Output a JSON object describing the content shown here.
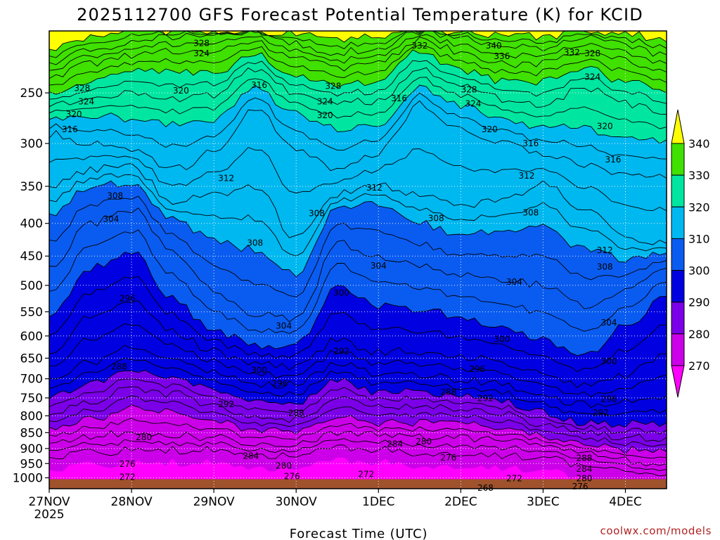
{
  "chart_data": {
    "type": "heatmap",
    "title": "2025112700 GFS Forecast Potential Temperature (K) for KCID",
    "xlabel": "Forecast Time (UTC)",
    "ylabel": "",
    "credit": "coolwx.com/models",
    "x_ticks": [
      "27NOV",
      "28NOV",
      "29NOV",
      "30NOV",
      "1DEC",
      "2DEC",
      "3DEC",
      "4DEC"
    ],
    "x_year": "2025",
    "x_range_days": [
      0,
      7.5
    ],
    "y_scale": "log",
    "y_range": [
      1040,
      200
    ],
    "y_ticks": [
      250,
      300,
      350,
      400,
      450,
      500,
      550,
      600,
      650,
      700,
      750,
      800,
      850,
      900,
      950,
      1000
    ],
    "contour_interval": 2,
    "colorbar": {
      "levels": [
        270,
        280,
        290,
        300,
        310,
        320,
        330,
        340
      ],
      "colors": [
        "#ff00ff",
        "#cc00e8",
        "#7b00e8",
        "#0000e0",
        "#0a5cf0",
        "#00b8f0",
        "#00e6a0",
        "#40e000",
        "#ffff00"
      ]
    },
    "ground_color": "#a0522d",
    "isentropes": [
      {
        "theta": 272,
        "x": [
          0,
          0.5,
          1,
          1.5,
          2,
          2.5,
          3,
          3.5,
          4,
          4.5,
          5,
          5.5,
          6,
          6.5,
          7,
          7.5
        ],
        "p": [
          930,
          915,
          905,
          905,
          905,
          920,
          925,
          900,
          905,
          915,
          920,
          925,
          930,
          955,
          980,
          990
        ]
      },
      {
        "theta": 276,
        "x": [
          0,
          0.5,
          1,
          1.5,
          2,
          2.5,
          3,
          3.5,
          4,
          4.5,
          5,
          5.5,
          6,
          6.5,
          7,
          7.5
        ],
        "p": [
          880,
          860,
          850,
          855,
          865,
          885,
          885,
          850,
          860,
          865,
          865,
          875,
          890,
          915,
          940,
          950
        ]
      },
      {
        "theta": 280,
        "x": [
          0,
          0.5,
          1,
          1.5,
          2,
          2.5,
          3,
          3.5,
          4,
          4.5,
          5,
          5.5,
          6,
          6.5,
          7,
          7.5
        ],
        "p": [
          835,
          810,
          775,
          785,
          810,
          845,
          850,
          800,
          820,
          820,
          820,
          835,
          860,
          885,
          905,
          910
        ]
      },
      {
        "theta": 284,
        "x": [
          0,
          0.5,
          1,
          1.5,
          2,
          2.5,
          3,
          3.5,
          4,
          4.5,
          5,
          5.5,
          6,
          6.5,
          7,
          7.5
        ],
        "p": [
          790,
          760,
          725,
          740,
          770,
          805,
          810,
          750,
          775,
          775,
          780,
          795,
          825,
          850,
          865,
          865
        ]
      },
      {
        "theta": 288,
        "x": [
          0,
          0.5,
          1,
          1.5,
          2,
          2.5,
          3,
          3.5,
          4,
          4.5,
          5,
          5.5,
          6,
          6.5,
          7,
          7.5
        ],
        "p": [
          745,
          710,
          675,
          695,
          725,
          760,
          765,
          705,
          735,
          735,
          745,
          760,
          790,
          820,
          825,
          820
        ]
      },
      {
        "theta": 292,
        "x": [
          0,
          0.5,
          1,
          1.5,
          2,
          2.5,
          3,
          3.5,
          4,
          4.5,
          5,
          5.5,
          6,
          6.5,
          7,
          7.5
        ],
        "p": [
          700,
          660,
          625,
          650,
          685,
          715,
          715,
          660,
          690,
          690,
          700,
          715,
          745,
          770,
          760,
          745
        ]
      },
      {
        "theta": 296,
        "x": [
          0,
          0.5,
          1,
          1.5,
          2,
          2.5,
          3,
          3.5,
          4,
          4.5,
          5,
          5.5,
          6,
          6.5,
          7,
          7.5
        ],
        "p": [
          640,
          560,
          530,
          590,
          635,
          665,
          670,
          610,
          635,
          635,
          645,
          660,
          690,
          715,
          690,
          640
        ]
      },
      {
        "theta": 300,
        "x": [
          0,
          0.5,
          1,
          1.5,
          2,
          2.5,
          3,
          3.5,
          4,
          4.5,
          5,
          5.5,
          6,
          6.5,
          7,
          7.5
        ],
        "p": [
          560,
          470,
          440,
          525,
          590,
          620,
          620,
          500,
          540,
          545,
          560,
          580,
          610,
          645,
          580,
          520
        ]
      },
      {
        "theta": 304,
        "x": [
          0,
          0.5,
          1,
          1.5,
          2,
          2.5,
          3,
          3.5,
          4,
          4.5,
          5,
          5.5,
          6,
          6.5,
          7,
          7.5
        ],
        "p": [
          470,
          400,
          380,
          440,
          510,
          555,
          565,
          430,
          450,
          465,
          480,
          490,
          500,
          540,
          510,
          470
        ]
      },
      {
        "theta": 308,
        "x": [
          0,
          0.5,
          1,
          1.5,
          2,
          2.5,
          3,
          3.5,
          4,
          4.5,
          5,
          5.5,
          6,
          6.5,
          7,
          7.5
        ],
        "p": [
          390,
          350,
          345,
          395,
          425,
          440,
          480,
          375,
          375,
          400,
          420,
          410,
          405,
          440,
          455,
          445
        ]
      },
      {
        "theta": 312,
        "x": [
          0,
          0.5,
          1,
          1.5,
          2,
          2.5,
          3,
          3.5,
          4,
          4.5,
          5,
          5.5,
          6,
          6.5,
          7,
          7.5
        ],
        "p": [
          350,
          330,
          325,
          370,
          360,
          350,
          420,
          360,
          350,
          360,
          375,
          370,
          345,
          380,
          420,
          430
        ]
      },
      {
        "theta": 316,
        "x": [
          0,
          0.5,
          1,
          1.5,
          2,
          2.5,
          3,
          3.5,
          4,
          4.5,
          5,
          5.5,
          6,
          6.5,
          7,
          7.5
        ],
        "p": [
          290,
          300,
          305,
          330,
          310,
          265,
          305,
          330,
          310,
          260,
          285,
          300,
          310,
          325,
          335,
          340
        ]
      },
      {
        "theta": 320,
        "x": [
          0,
          0.5,
          1,
          1.5,
          2,
          2.5,
          3,
          3.5,
          4,
          4.5,
          5,
          5.5,
          6,
          6.5,
          7,
          7.5
        ],
        "p": [
          275,
          270,
          275,
          280,
          275,
          245,
          270,
          285,
          280,
          245,
          262,
          275,
          282,
          285,
          292,
          296
        ]
      },
      {
        "theta": 324,
        "x": [
          0,
          0.5,
          1,
          1.5,
          2,
          2.5,
          3,
          3.5,
          4,
          4.5,
          5,
          5.5,
          6,
          6.5,
          7,
          7.5
        ],
        "p": [
          262,
          255,
          250,
          255,
          252,
          230,
          250,
          258,
          258,
          228,
          245,
          255,
          260,
          245,
          260,
          270
        ]
      },
      {
        "theta": 328,
        "x": [
          0,
          0.5,
          1,
          1.5,
          2,
          2.5,
          3,
          3.5,
          4,
          4.5,
          5,
          5.5,
          6,
          6.5,
          7,
          7.5
        ],
        "p": [
          250,
          240,
          232,
          232,
          232,
          218,
          235,
          242,
          240,
          215,
          230,
          240,
          240,
          228,
          240,
          250
        ]
      },
      {
        "theta": 332,
        "x": [
          0,
          0.5,
          1,
          1.5,
          2,
          2.5,
          3,
          3.5,
          4,
          4.5,
          5,
          5.5,
          6,
          6.5,
          7,
          7.5
        ],
        "p": [
          238,
          225,
          218,
          215,
          214,
          208,
          222,
          228,
          225,
          206,
          215,
          225,
          225,
          215,
          222,
          232
        ]
      },
      {
        "theta": 336,
        "x": [
          0,
          0.5,
          1,
          1.5,
          2,
          2.5,
          3,
          3.5,
          4,
          4.5,
          5,
          5.5,
          6,
          6.5,
          7,
          7.5
        ],
        "p": [
          226,
          214,
          208,
          204,
          204,
          202,
          210,
          216,
          212,
          200,
          205,
          212,
          212,
          205,
          210,
          218
        ]
      },
      {
        "theta": 340,
        "x": [
          0,
          0.5,
          1,
          1.5,
          2,
          2.5,
          3,
          3.5,
          4,
          4.5,
          5,
          5.5,
          6,
          6.5,
          7,
          7.5
        ],
        "p": [
          214,
          205,
          200,
          200,
          200,
          200,
          202,
          206,
          204,
          200,
          200,
          204,
          204,
          200,
          202,
          208
        ]
      }
    ],
    "contour_labels": [
      {
        "text": "328",
        "x": 1.85,
        "p": 209
      },
      {
        "text": "324",
        "x": 1.85,
        "p": 217
      },
      {
        "text": "316",
        "x": 2.55,
        "p": 243
      },
      {
        "text": "332",
        "x": 4.5,
        "p": 211
      },
      {
        "text": "340",
        "x": 5.4,
        "p": 211
      },
      {
        "text": "336",
        "x": 5.5,
        "p": 219
      },
      {
        "text": "332",
        "x": 6.35,
        "p": 216
      },
      {
        "text": "328",
        "x": 6.6,
        "p": 217
      },
      {
        "text": "324",
        "x": 6.6,
        "p": 236
      },
      {
        "text": "328",
        "x": 0.4,
        "p": 246
      },
      {
        "text": "324",
        "x": 0.45,
        "p": 258
      },
      {
        "text": "320",
        "x": 1.6,
        "p": 248
      },
      {
        "text": "328",
        "x": 3.45,
        "p": 244
      },
      {
        "text": "324",
        "x": 3.35,
        "p": 258
      },
      {
        "text": "320",
        "x": 3.35,
        "p": 271
      },
      {
        "text": "316",
        "x": 4.25,
        "p": 255
      },
      {
        "text": "328",
        "x": 5.1,
        "p": 247
      },
      {
        "text": "324",
        "x": 5.15,
        "p": 260
      },
      {
        "text": "320",
        "x": 0.3,
        "p": 270
      },
      {
        "text": "316",
        "x": 0.25,
        "p": 285
      },
      {
        "text": "320",
        "x": 5.35,
        "p": 285
      },
      {
        "text": "316",
        "x": 5.85,
        "p": 300
      },
      {
        "text": "320",
        "x": 6.75,
        "p": 282
      },
      {
        "text": "316",
        "x": 6.85,
        "p": 318
      },
      {
        "text": "312",
        "x": 2.15,
        "p": 340
      },
      {
        "text": "312",
        "x": 3.95,
        "p": 352
      },
      {
        "text": "312",
        "x": 5.8,
        "p": 337
      },
      {
        "text": "308",
        "x": 0.8,
        "p": 362
      },
      {
        "text": "304",
        "x": 0.75,
        "p": 394
      },
      {
        "text": "308",
        "x": 3.25,
        "p": 386
      },
      {
        "text": "308",
        "x": 4.7,
        "p": 393
      },
      {
        "text": "308",
        "x": 5.85,
        "p": 385
      },
      {
        "text": "308",
        "x": 2.5,
        "p": 429
      },
      {
        "text": "304",
        "x": 4.0,
        "p": 466
      },
      {
        "text": "312",
        "x": 6.75,
        "p": 441
      },
      {
        "text": "308",
        "x": 6.75,
        "p": 468
      },
      {
        "text": "304",
        "x": 5.65,
        "p": 494
      },
      {
        "text": "300",
        "x": 3.55,
        "p": 514
      },
      {
        "text": "296",
        "x": 0.95,
        "p": 524
      },
      {
        "text": "304",
        "x": 2.85,
        "p": 579
      },
      {
        "text": "304",
        "x": 6.8,
        "p": 572
      },
      {
        "text": "300",
        "x": 5.5,
        "p": 607
      },
      {
        "text": "292",
        "x": 3.55,
        "p": 634
      },
      {
        "text": "300",
        "x": 6.8,
        "p": 658
      },
      {
        "text": "288",
        "x": 0.85,
        "p": 670
      },
      {
        "text": "300",
        "x": 2.55,
        "p": 679
      },
      {
        "text": "296",
        "x": 5.2,
        "p": 676
      },
      {
        "text": "296",
        "x": 2.8,
        "p": 712
      },
      {
        "text": "288",
        "x": 4.85,
        "p": 734
      },
      {
        "text": "292",
        "x": 5.3,
        "p": 751
      },
      {
        "text": "292",
        "x": 2.15,
        "p": 767
      },
      {
        "text": "296",
        "x": 6.8,
        "p": 753
      },
      {
        "text": "288",
        "x": 3.0,
        "p": 792
      },
      {
        "text": "292",
        "x": 6.7,
        "p": 791
      },
      {
        "text": "280",
        "x": 1.15,
        "p": 864
      },
      {
        "text": "284",
        "x": 4.2,
        "p": 885
      },
      {
        "text": "280",
        "x": 4.55,
        "p": 878
      },
      {
        "text": "284",
        "x": 2.45,
        "p": 925
      },
      {
        "text": "276",
        "x": 4.85,
        "p": 930
      },
      {
        "text": "280",
        "x": 2.85,
        "p": 958
      },
      {
        "text": "276",
        "x": 0.95,
        "p": 952
      },
      {
        "text": "288",
        "x": 6.5,
        "p": 932
      },
      {
        "text": "284",
        "x": 6.5,
        "p": 969
      },
      {
        "text": "272",
        "x": 0.95,
        "p": 998
      },
      {
        "text": "276",
        "x": 2.95,
        "p": 995
      },
      {
        "text": "272",
        "x": 3.85,
        "p": 988
      },
      {
        "text": "280",
        "x": 6.5,
        "p": 1003
      },
      {
        "text": "272",
        "x": 5.65,
        "p": 1002
      },
      {
        "text": "276",
        "x": 6.45,
        "p": 1032
      },
      {
        "text": "268",
        "x": 5.3,
        "p": 1037
      }
    ]
  }
}
